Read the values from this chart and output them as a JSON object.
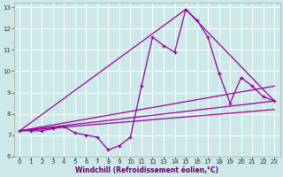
{
  "xlabel": "Windchill (Refroidissement éolien,°C)",
  "xlim": [
    -0.5,
    23.5
  ],
  "ylim": [
    6,
    13.2
  ],
  "yticks": [
    6,
    7,
    8,
    9,
    10,
    11,
    12,
    13
  ],
  "xticks": [
    0,
    1,
    2,
    3,
    4,
    5,
    6,
    7,
    8,
    9,
    10,
    11,
    12,
    13,
    14,
    15,
    16,
    17,
    18,
    19,
    20,
    21,
    22,
    23
  ],
  "bg_color": "#cce8e8",
  "line_color": "#990099",
  "grid_color": "#ffffff",
  "hourly_x": [
    0,
    1,
    2,
    3,
    4,
    5,
    6,
    7,
    8,
    9,
    10,
    11,
    12,
    13,
    14,
    15,
    16,
    17,
    18,
    19,
    20,
    21,
    22,
    23
  ],
  "hourly_y": [
    7.2,
    7.2,
    7.2,
    7.3,
    7.4,
    7.1,
    7.0,
    6.9,
    6.3,
    6.5,
    6.9,
    9.3,
    11.6,
    11.2,
    10.9,
    12.9,
    12.4,
    11.6,
    9.9,
    8.5,
    9.7,
    9.3,
    8.8,
    8.6
  ],
  "trend1_x": [
    0,
    23
  ],
  "trend1_y": [
    7.2,
    8.6
  ],
  "trend2_x": [
    0,
    15,
    23
  ],
  "trend2_y": [
    7.2,
    12.9,
    8.6
  ],
  "trend3_x": [
    0,
    23
  ],
  "trend3_y": [
    7.2,
    9.3
  ],
  "trend4_x": [
    0,
    23
  ],
  "trend4_y": [
    7.2,
    8.2
  ]
}
